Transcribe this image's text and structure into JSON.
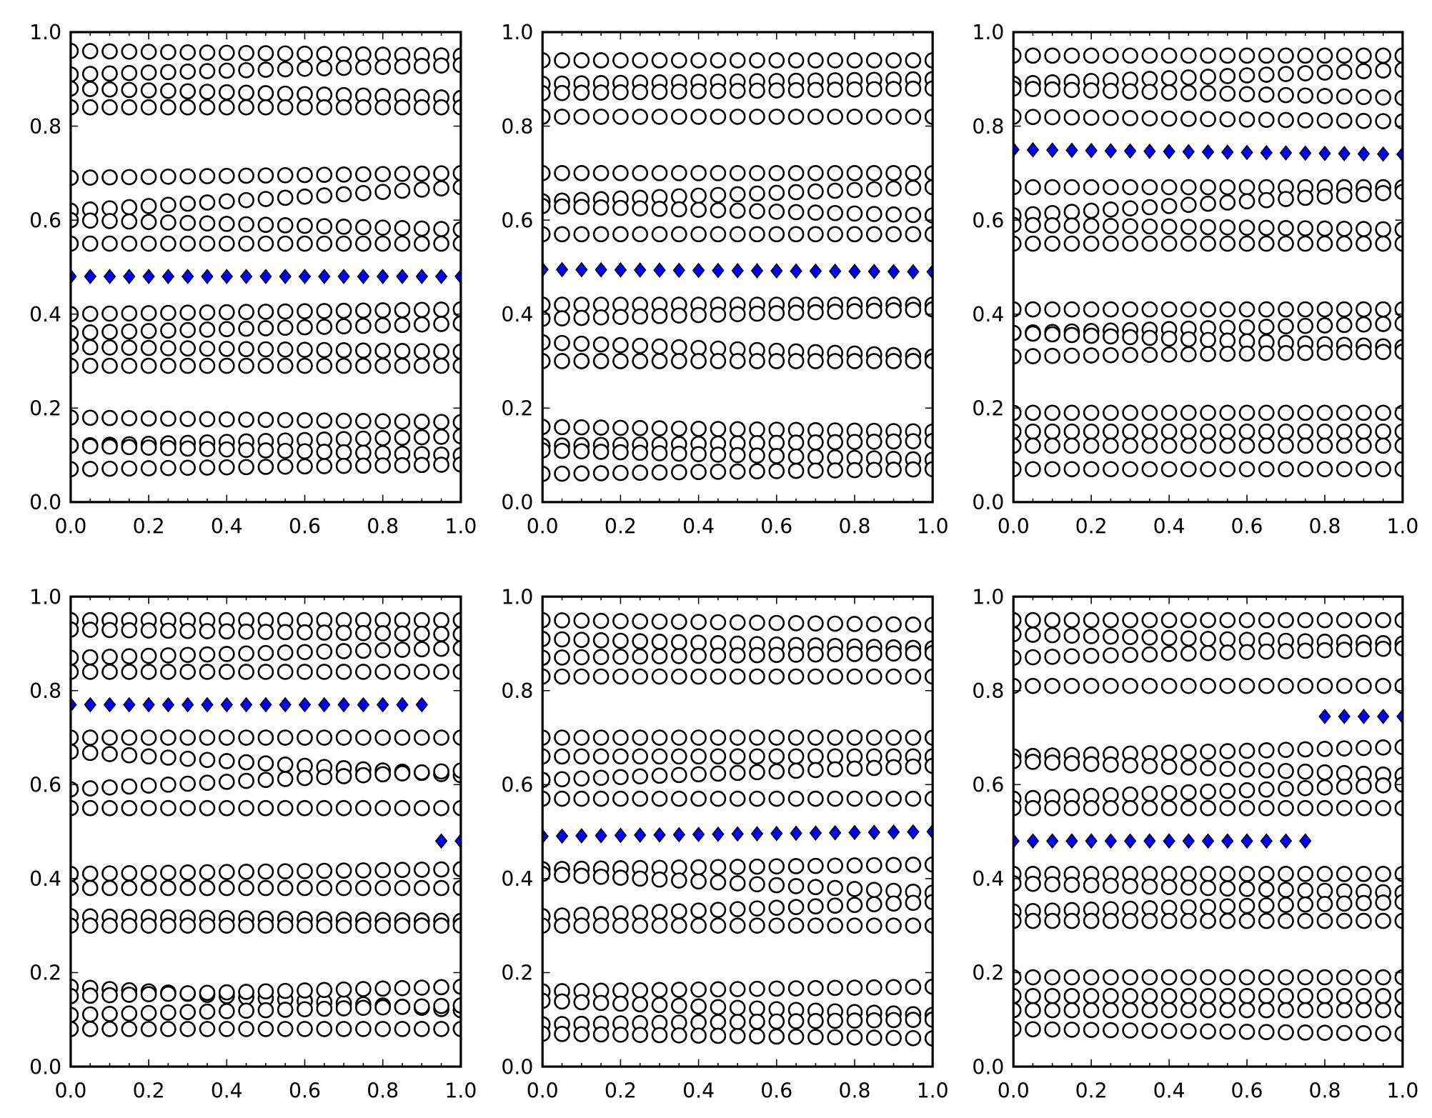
{
  "chart_data": {
    "type": "scatter",
    "layout": "2x3 grid",
    "x": [
      0.0,
      0.05,
      0.1,
      0.15,
      0.2,
      0.25,
      0.3,
      0.35,
      0.4,
      0.45,
      0.5,
      0.55,
      0.6,
      0.65,
      0.7,
      0.75,
      0.8,
      0.85,
      0.9,
      0.95,
      1.0
    ],
    "xlim": [
      0,
      1
    ],
    "ylim": [
      0,
      1
    ],
    "xticks": [
      "0.0",
      "0.2",
      "0.4",
      "0.6",
      "0.8",
      "1.0"
    ],
    "yticks": [
      "0.0",
      "0.2",
      "0.4",
      "0.6",
      "0.8",
      "1.0"
    ],
    "marker_colors": {
      "circle_face": "#ffffff",
      "circle_edge": "#000000",
      "diamond_face": "#0000ff",
      "diamond_edge": "#000000"
    },
    "note": "Each circle row lists y at x=0 and y at x=1; points vary approximately linearly between.",
    "panels": [
      {
        "circle_rows": [
          [
            0.96,
            0.95
          ],
          [
            0.91,
            0.93
          ],
          [
            0.88,
            0.86
          ],
          [
            0.84,
            0.84
          ],
          [
            0.69,
            0.7
          ],
          [
            0.62,
            0.67
          ],
          [
            0.6,
            0.58
          ],
          [
            0.55,
            0.55
          ],
          [
            0.4,
            0.41
          ],
          [
            0.36,
            0.38
          ],
          [
            0.33,
            0.32
          ],
          [
            0.29,
            0.29
          ],
          [
            0.18,
            0.17
          ],
          [
            0.12,
            0.14
          ],
          [
            0.12,
            0.1
          ],
          [
            0.07,
            0.08
          ]
        ],
        "diamond_rows": [
          {
            "y": [
              0.48,
              0.48
            ],
            "x_range": [
              0,
              1
            ]
          }
        ]
      },
      {
        "circle_rows": [
          [
            0.94,
            0.94
          ],
          [
            0.89,
            0.9
          ],
          [
            0.87,
            0.88
          ],
          [
            0.82,
            0.82
          ],
          [
            0.7,
            0.7
          ],
          [
            0.64,
            0.67
          ],
          [
            0.63,
            0.61
          ],
          [
            0.57,
            0.57
          ],
          [
            0.42,
            0.42
          ],
          [
            0.39,
            0.41
          ],
          [
            0.34,
            0.31
          ],
          [
            0.3,
            0.3
          ],
          [
            0.16,
            0.15
          ],
          [
            0.12,
            0.13
          ],
          [
            0.11,
            0.09
          ],
          [
            0.06,
            0.07
          ]
        ],
        "diamond_rows": [
          {
            "y": [
              0.495,
              0.49
            ],
            "x_range": [
              0,
              1
            ]
          }
        ]
      },
      {
        "circle_rows": [
          [
            0.95,
            0.95
          ],
          [
            0.89,
            0.92
          ],
          [
            0.88,
            0.86
          ],
          [
            0.82,
            0.81
          ],
          [
            0.67,
            0.67
          ],
          [
            0.61,
            0.66
          ],
          [
            0.59,
            0.58
          ],
          [
            0.55,
            0.55
          ],
          [
            0.41,
            0.41
          ],
          [
            0.36,
            0.38
          ],
          [
            0.36,
            0.33
          ],
          [
            0.31,
            0.32
          ],
          [
            0.19,
            0.19
          ],
          [
            0.15,
            0.15
          ],
          [
            0.12,
            0.12
          ],
          [
            0.07,
            0.07
          ]
        ],
        "diamond_rows": [
          {
            "y": [
              0.75,
              0.74
            ],
            "x_range": [
              0,
              1
            ]
          }
        ]
      },
      {
        "circle_rows": [
          [
            0.95,
            0.95
          ],
          [
            0.93,
            0.92
          ],
          [
            0.87,
            0.89
          ],
          [
            0.84,
            0.84
          ],
          [
            0.7,
            0.7
          ],
          [
            0.67,
            0.62
          ],
          [
            0.59,
            0.63
          ],
          [
            0.55,
            0.55
          ],
          [
            0.41,
            0.42
          ],
          [
            0.38,
            0.38
          ],
          [
            0.32,
            0.31
          ],
          [
            0.3,
            0.3
          ],
          [
            0.17,
            0.12
          ],
          [
            0.15,
            0.17
          ],
          [
            0.11,
            0.13
          ],
          [
            0.08,
            0.08
          ]
        ],
        "diamond_rows": [
          {
            "y": [
              0.77,
              0.77
            ],
            "x_range": [
              0,
              0.9
            ]
          },
          {
            "y": [
              0.48,
              0.48
            ],
            "x_range": [
              0.95,
              1
            ]
          }
        ]
      },
      {
        "circle_rows": [
          [
            0.95,
            0.94
          ],
          [
            0.91,
            0.89
          ],
          [
            0.87,
            0.88
          ],
          [
            0.83,
            0.83
          ],
          [
            0.7,
            0.7
          ],
          [
            0.66,
            0.66
          ],
          [
            0.61,
            0.64
          ],
          [
            0.57,
            0.57
          ],
          [
            0.42,
            0.43
          ],
          [
            0.41,
            0.37
          ],
          [
            0.32,
            0.35
          ],
          [
            0.3,
            0.3
          ],
          [
            0.16,
            0.17
          ],
          [
            0.14,
            0.11
          ],
          [
            0.09,
            0.1
          ],
          [
            0.07,
            0.06
          ]
        ],
        "diamond_rows": [
          {
            "y": [
              0.49,
              0.5
            ],
            "x_range": [
              0,
              1
            ]
          }
        ]
      },
      {
        "circle_rows": [
          [
            0.95,
            0.95
          ],
          [
            0.92,
            0.9
          ],
          [
            0.87,
            0.89
          ],
          [
            0.81,
            0.81
          ],
          [
            0.66,
            0.68
          ],
          [
            0.65,
            0.62
          ],
          [
            0.57,
            0.6
          ],
          [
            0.55,
            0.55
          ],
          [
            0.41,
            0.41
          ],
          [
            0.39,
            0.37
          ],
          [
            0.33,
            0.35
          ],
          [
            0.31,
            0.31
          ],
          [
            0.19,
            0.19
          ],
          [
            0.15,
            0.15
          ],
          [
            0.12,
            0.12
          ],
          [
            0.08,
            0.07
          ]
        ],
        "diamond_rows": [
          {
            "y": [
              0.745,
              0.745
            ],
            "x_range": [
              0.8,
              1
            ]
          },
          {
            "y": [
              0.48,
              0.48
            ],
            "x_range": [
              0,
              0.75
            ]
          }
        ]
      }
    ]
  }
}
